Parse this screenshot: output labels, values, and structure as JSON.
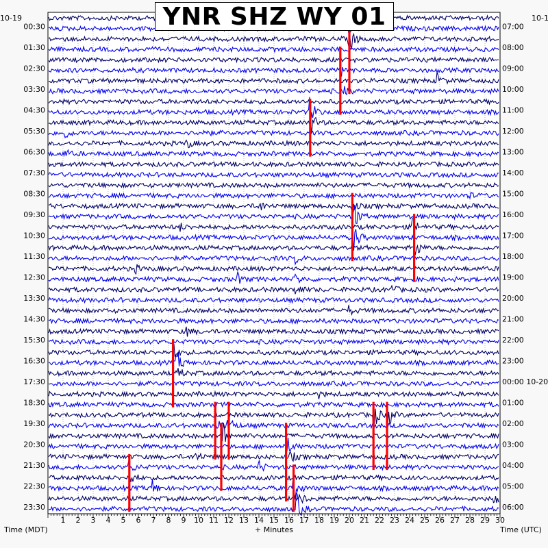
{
  "chart_data": {
    "type": "helicorder",
    "title": "YNR SHZ WY 01",
    "left_date": "10-19",
    "right_date": "10-1",
    "xlabel": "+ Minutes",
    "left_axis_label": "Time (MDT)",
    "right_axis_label": "Time (UTC)",
    "x_ticks": [
      1,
      2,
      3,
      4,
      5,
      6,
      7,
      8,
      9,
      10,
      11,
      12,
      13,
      14,
      15,
      16,
      17,
      18,
      19,
      20,
      21,
      22,
      23,
      24,
      25,
      26,
      27,
      28,
      29,
      30
    ],
    "xlim": [
      0,
      30
    ],
    "rows": 48,
    "row_minutes": 30,
    "left_labels": [
      "00:30",
      "01:30",
      "02:30",
      "03:30",
      "04:30",
      "05:30",
      "06:30",
      "07:30",
      "08:30",
      "09:30",
      "10:30",
      "11:30",
      "12:30",
      "13:30",
      "14:30",
      "15:30",
      "16:30",
      "17:30",
      "18:30",
      "19:30",
      "20:30",
      "21:30",
      "22:30",
      "23:30"
    ],
    "right_labels": [
      "07:00",
      "08:00",
      "09:00",
      "10:00",
      "11:00",
      "12:00",
      "13:00",
      "14:00",
      "15:00",
      "16:00",
      "17:00",
      "18:00",
      "19:00",
      "20:00",
      "21:00",
      "22:00",
      "23:00",
      "00:00 10-20",
      "01:00",
      "02:00",
      "03:00",
      "04:00",
      "05:00",
      "06:00"
    ],
    "trace_colors": [
      "#000066",
      "#0000ee"
    ],
    "clip_color": "#ff0000",
    "events": [
      {
        "row": 1,
        "minute": 19.9,
        "amp": 1.2
      },
      {
        "row": 2,
        "minute": 20.0,
        "amp": 3.0
      },
      {
        "row": 5,
        "minute": 19.5,
        "amp": 1.0
      },
      {
        "row": 6,
        "minute": 25.8,
        "amp": 1.5
      },
      {
        "row": 7,
        "minute": 19.6,
        "amp": 0.9
      },
      {
        "row": 9,
        "minute": 17.4,
        "amp": 3.0
      },
      {
        "row": 10,
        "minute": 17.5,
        "amp": 2.0
      },
      {
        "row": 11,
        "minute": 1.1,
        "amp": 1.2
      },
      {
        "row": 11,
        "minute": 10.2,
        "amp": 1.3
      },
      {
        "row": 12,
        "minute": 9.2,
        "amp": 1.0
      },
      {
        "row": 13,
        "minute": 1.1,
        "amp": 0.9
      },
      {
        "row": 17,
        "minute": 27.8,
        "amp": 0.8
      },
      {
        "row": 18,
        "minute": 14.0,
        "amp": 1.3
      },
      {
        "row": 18,
        "minute": 20.2,
        "amp": 1.2
      },
      {
        "row": 19,
        "minute": 20.3,
        "amp": 3.0
      },
      {
        "row": 20,
        "minute": 8.7,
        "amp": 0.9
      },
      {
        "row": 20,
        "minute": 24.2,
        "amp": 2.0
      },
      {
        "row": 21,
        "minute": 20.3,
        "amp": 3.0
      },
      {
        "row": 22,
        "minute": 24.3,
        "amp": 3.0
      },
      {
        "row": 23,
        "minute": 16.4,
        "amp": 1.0
      },
      {
        "row": 24,
        "minute": 5.7,
        "amp": 1.0
      },
      {
        "row": 25,
        "minute": 12.6,
        "amp": 1.2
      },
      {
        "row": 25,
        "minute": 16.4,
        "amp": 1.2
      },
      {
        "row": 26,
        "minute": 16.4,
        "amp": 1.5
      },
      {
        "row": 26,
        "minute": 22.8,
        "amp": 0.9
      },
      {
        "row": 28,
        "minute": 20.0,
        "amp": 0.8
      },
      {
        "row": 30,
        "minute": 9.2,
        "amp": 1.0
      },
      {
        "row": 32,
        "minute": 8.4,
        "amp": 1.4
      },
      {
        "row": 33,
        "minute": 8.5,
        "amp": 3.0
      },
      {
        "row": 34,
        "minute": 8.6,
        "amp": 1.5
      },
      {
        "row": 36,
        "minute": 17.9,
        "amp": 0.8
      },
      {
        "row": 38,
        "minute": 21.6,
        "amp": 3.0
      },
      {
        "row": 38,
        "minute": 22.5,
        "amp": 3.0
      },
      {
        "row": 39,
        "minute": 11.2,
        "amp": 1.3
      },
      {
        "row": 39,
        "minute": 11.9,
        "amp": 3.0
      },
      {
        "row": 40,
        "minute": 11.6,
        "amp": 3.0
      },
      {
        "row": 41,
        "minute": 15.9,
        "amp": 1.6
      },
      {
        "row": 42,
        "minute": 9.8,
        "amp": 1.2
      },
      {
        "row": 42,
        "minute": 16.1,
        "amp": 1.2
      },
      {
        "row": 43,
        "minute": 5.4,
        "amp": 1.3
      },
      {
        "row": 43,
        "minute": 14.0,
        "amp": 1.2
      },
      {
        "row": 44,
        "minute": 1.6,
        "amp": 1.1
      },
      {
        "row": 44,
        "minute": 5.5,
        "amp": 1.5
      },
      {
        "row": 45,
        "minute": 6.9,
        "amp": 1.8
      },
      {
        "row": 45,
        "minute": 16.3,
        "amp": 3.0
      },
      {
        "row": 46,
        "minute": 16.7,
        "amp": 1.4
      },
      {
        "row": 46,
        "minute": 29.6,
        "amp": 1.5
      },
      {
        "row": 47,
        "minute": 16.5,
        "amp": 3.0
      }
    ],
    "clipped_spans": [
      {
        "minute": 20.0,
        "from_row": 0,
        "to_row": 7
      },
      {
        "minute": 19.4,
        "from_row": 3,
        "to_row": 9
      },
      {
        "minute": 17.4,
        "from_row": 8,
        "to_row": 13
      },
      {
        "minute": 20.2,
        "from_row": 17,
        "to_row": 23
      },
      {
        "minute": 24.3,
        "from_row": 19,
        "to_row": 25
      },
      {
        "minute": 8.3,
        "from_row": 31,
        "to_row": 37
      },
      {
        "minute": 11.1,
        "from_row": 37,
        "to_row": 42
      },
      {
        "minute": 12.0,
        "from_row": 37,
        "to_row": 42
      },
      {
        "minute": 21.6,
        "from_row": 37,
        "to_row": 43
      },
      {
        "minute": 22.5,
        "from_row": 37,
        "to_row": 43
      },
      {
        "minute": 11.5,
        "from_row": 39,
        "to_row": 45
      },
      {
        "minute": 15.8,
        "from_row": 39,
        "to_row": 46
      },
      {
        "minute": 5.4,
        "from_row": 42,
        "to_row": 47
      },
      {
        "minute": 16.3,
        "from_row": 43,
        "to_row": 47
      }
    ]
  }
}
